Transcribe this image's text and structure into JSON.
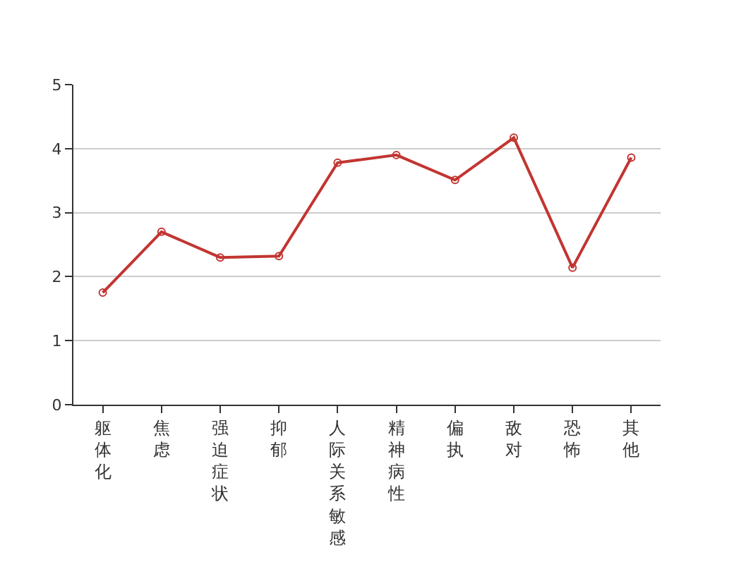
{
  "chart_data": {
    "type": "line",
    "categories": [
      "躯体化",
      "焦虑",
      "强迫症状",
      "抑郁",
      "人际关系敏感",
      "精神病性",
      "偏执",
      "敌对",
      "恐怖",
      "其他"
    ],
    "series": [
      {
        "color": "#c23531",
        "values": [
          1.75,
          2.7,
          2.3,
          2.32,
          3.78,
          3.9,
          3.51,
          4.17,
          2.14,
          3.86
        ]
      }
    ],
    "ylim": [
      0,
      5
    ],
    "yticks": [
      0,
      1,
      2,
      3,
      4,
      5
    ],
    "grid": "y",
    "marker": "circle",
    "line_style": "solid"
  }
}
